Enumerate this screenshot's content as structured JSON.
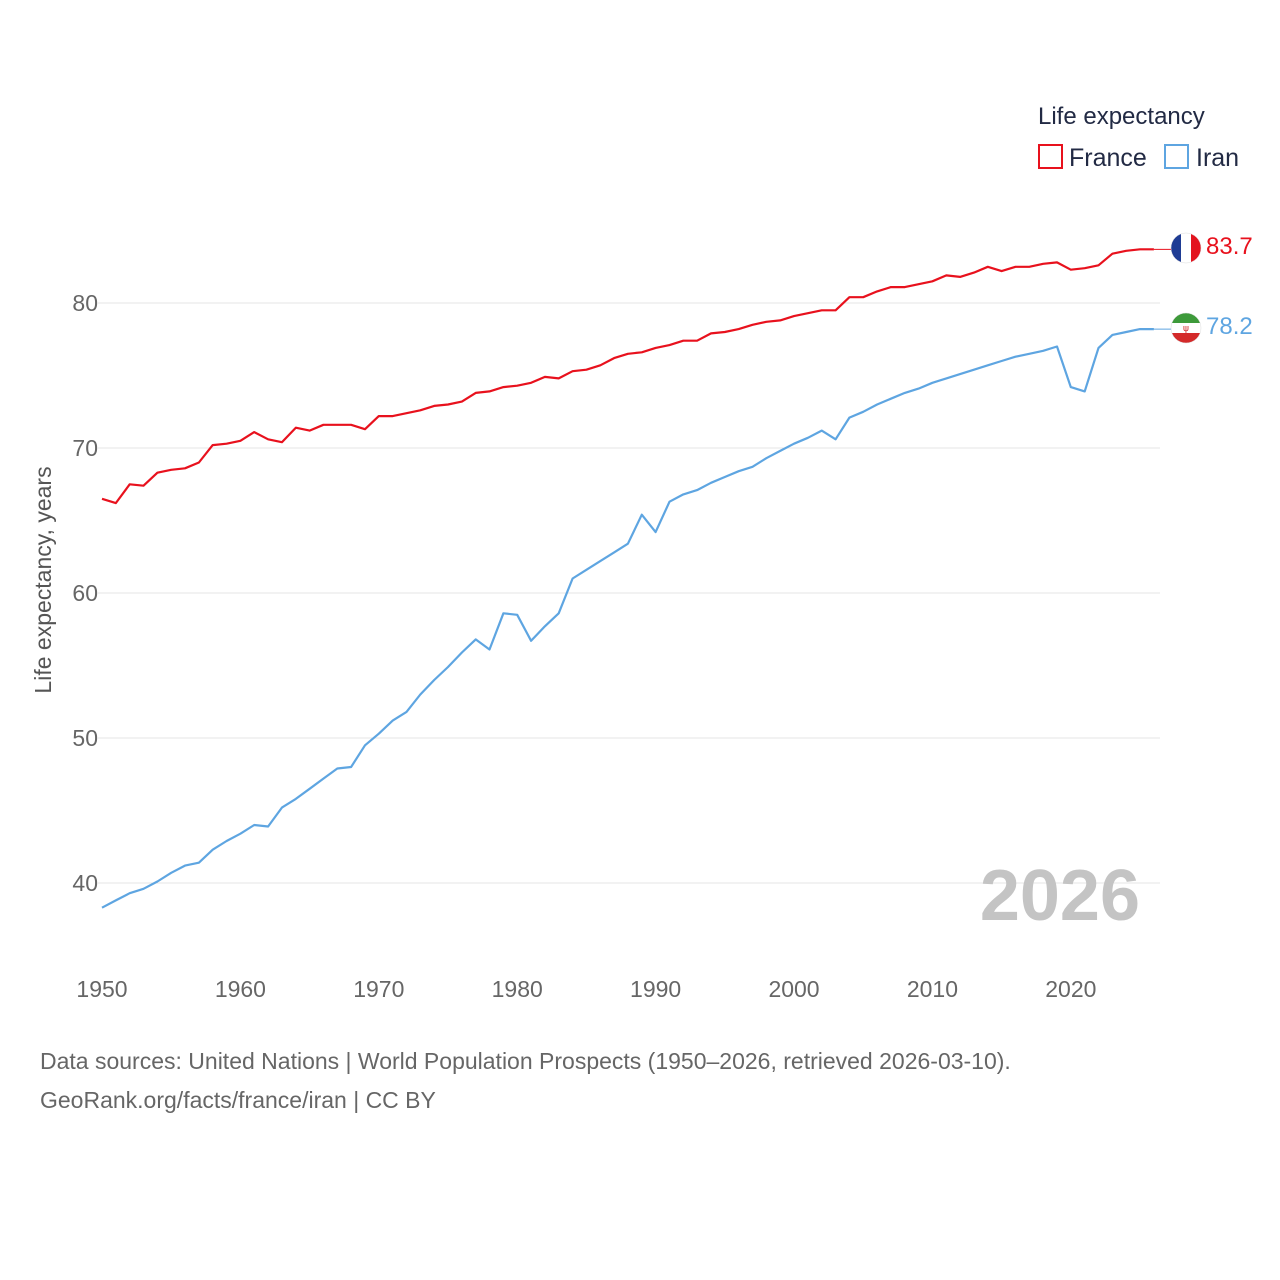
{
  "chart_data": {
    "type": "line",
    "ylabel": "Life expectancy, years",
    "xlim": [
      1950,
      2026
    ],
    "ylim": [
      35,
      86
    ],
    "x_ticks": [
      1950,
      1960,
      1970,
      1980,
      1990,
      2000,
      2010,
      2020
    ],
    "y_ticks": [
      40,
      50,
      60,
      70,
      80
    ],
    "gridlines": true,
    "current_year": "2026",
    "legend": {
      "title": "Life expectancy",
      "position": "top-right"
    },
    "x": [
      1950,
      1951,
      1952,
      1953,
      1954,
      1955,
      1956,
      1957,
      1958,
      1959,
      1960,
      1961,
      1962,
      1963,
      1964,
      1965,
      1966,
      1967,
      1968,
      1969,
      1970,
      1971,
      1972,
      1973,
      1974,
      1975,
      1976,
      1977,
      1978,
      1979,
      1980,
      1981,
      1982,
      1983,
      1984,
      1985,
      1986,
      1987,
      1988,
      1989,
      1990,
      1991,
      1992,
      1993,
      1994,
      1995,
      1996,
      1997,
      1998,
      1999,
      2000,
      2001,
      2002,
      2003,
      2004,
      2005,
      2006,
      2007,
      2008,
      2009,
      2010,
      2011,
      2012,
      2013,
      2014,
      2015,
      2016,
      2017,
      2018,
      2019,
      2020,
      2021,
      2022,
      2023,
      2024,
      2025,
      2026
    ],
    "series": [
      {
        "name": "France",
        "color": "#e8111d",
        "end_label": "83.7",
        "flag": "france-flag",
        "values": [
          66.5,
          66.2,
          67.5,
          67.4,
          68.3,
          68.5,
          68.6,
          69.0,
          70.2,
          70.3,
          70.5,
          71.1,
          70.6,
          70.4,
          71.4,
          71.2,
          71.6,
          71.6,
          71.6,
          71.3,
          72.2,
          72.2,
          72.4,
          72.6,
          72.9,
          73.0,
          73.2,
          73.8,
          73.9,
          74.2,
          74.3,
          74.5,
          74.9,
          74.8,
          75.3,
          75.4,
          75.7,
          76.2,
          76.5,
          76.6,
          76.9,
          77.1,
          77.4,
          77.4,
          77.9,
          78.0,
          78.2,
          78.5,
          78.7,
          78.8,
          79.1,
          79.3,
          79.5,
          79.5,
          80.4,
          80.4,
          80.8,
          81.1,
          81.1,
          81.3,
          81.5,
          81.9,
          81.8,
          82.1,
          82.5,
          82.2,
          82.5,
          82.5,
          82.7,
          82.8,
          82.3,
          82.4,
          82.6,
          83.4,
          83.6,
          83.7,
          83.7
        ]
      },
      {
        "name": "Iran",
        "color": "#5ea5e1",
        "end_label": "78.2",
        "flag": "iran-flag",
        "values": [
          38.3,
          38.8,
          39.3,
          39.6,
          40.1,
          40.7,
          41.2,
          41.4,
          42.3,
          42.9,
          43.4,
          44.0,
          43.9,
          45.2,
          45.8,
          46.5,
          47.2,
          47.9,
          48.0,
          49.5,
          50.3,
          51.2,
          51.8,
          53.0,
          54.0,
          54.9,
          55.9,
          56.8,
          56.1,
          58.6,
          58.5,
          56.7,
          57.7,
          58.6,
          61.0,
          61.6,
          62.2,
          62.8,
          63.4,
          65.4,
          64.2,
          66.3,
          66.8,
          67.1,
          67.6,
          68.0,
          68.4,
          68.7,
          69.3,
          69.8,
          70.3,
          70.7,
          71.2,
          70.6,
          72.1,
          72.5,
          73.0,
          73.4,
          73.8,
          74.1,
          74.5,
          74.8,
          75.1,
          75.4,
          75.7,
          76.0,
          76.3,
          76.5,
          76.7,
          77.0,
          74.2,
          73.9,
          76.9,
          77.8,
          78.0,
          78.2,
          78.2
        ]
      }
    ]
  },
  "footer": {
    "line1": "Data sources: United Nations | World Population Prospects (1950–2026, retrieved 2026-03-10).",
    "line2": "GeoRank.org/facts/france/iran | CC BY"
  }
}
